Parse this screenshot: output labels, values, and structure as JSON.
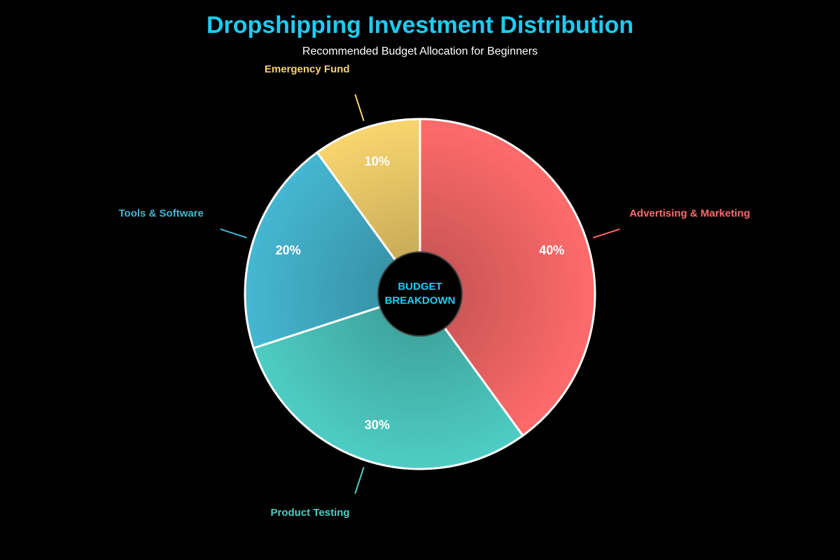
{
  "chart_data": {
    "type": "pie",
    "title": "Dropshipping Investment Distribution",
    "subtitle": "Recommended Budget Allocation for Beginners",
    "categories": [
      "Advertising & Marketing",
      "Product Testing",
      "Tools & Software",
      "Emergency Fund"
    ],
    "values": [
      40,
      30,
      20,
      10
    ],
    "value_labels": [
      "40%",
      "30%",
      "20%",
      "10%"
    ],
    "colors": [
      "#ff6b6b",
      "#4ecdc4",
      "#45b7d1",
      "#f9d56e"
    ],
    "center_label": [
      "BUDGET",
      "BREAKDOWN"
    ]
  }
}
